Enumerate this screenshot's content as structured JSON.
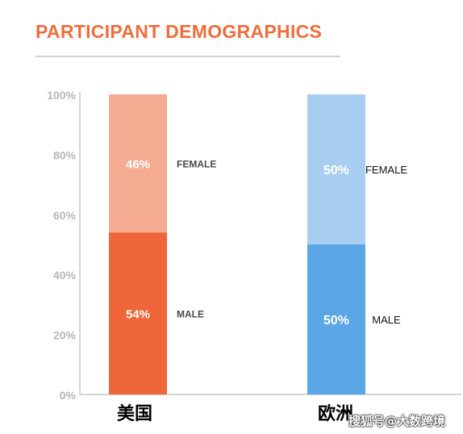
{
  "title": "PARTICIPANT DEMOGRAPHICS",
  "watermark": "搜狐号@大数跨境",
  "colors": {
    "title": "#ee6d3c",
    "us_male": "#ee6639",
    "us_female": "#f5ab91",
    "eu_male": "#5aa6e6",
    "eu_female": "#a9cdf1",
    "axis_text": "#b7b7b7",
    "axis_line": "#c9c9c9"
  },
  "chart_data": {
    "type": "bar",
    "stacked": true,
    "percent_stacked": true,
    "categories": [
      "美国",
      "欧洲"
    ],
    "series": [
      {
        "name": "MALE",
        "values": [
          54,
          50
        ]
      },
      {
        "name": "FEMALE",
        "values": [
          46,
          50
        ]
      }
    ],
    "data_labels": [
      [
        "54%",
        "50%"
      ],
      [
        "46%",
        "50%"
      ]
    ],
    "yticks": [
      "0%",
      "20%",
      "40%",
      "60%",
      "80%",
      "100%"
    ],
    "ylim": [
      0,
      100
    ],
    "grid": false,
    "legend": "inline labels beside each segment"
  }
}
